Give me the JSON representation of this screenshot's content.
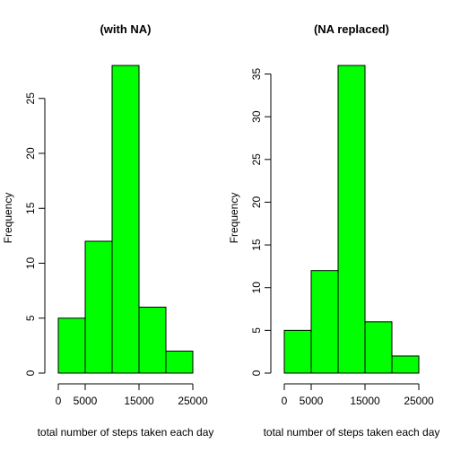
{
  "colors": {
    "bar_fill": "#00ff00",
    "bar_stroke": "#000000"
  },
  "chart_data": [
    {
      "type": "bar",
      "title": "(with NA)",
      "xlabel": "total number of steps taken each day",
      "ylabel": "Frequency",
      "bins": [
        [
          0,
          5000
        ],
        [
          5000,
          10000
        ],
        [
          10000,
          15000
        ],
        [
          15000,
          20000
        ],
        [
          20000,
          25000
        ]
      ],
      "values": [
        5,
        12,
        28,
        6,
        2
      ],
      "xticks": [
        0,
        5000,
        15000,
        25000
      ],
      "xtick_labels": [
        "0",
        "5000",
        "15000",
        "25000"
      ],
      "yticks": [
        0,
        5,
        10,
        15,
        20,
        25
      ],
      "ytick_labels": [
        "0",
        "5",
        "10",
        "15",
        "20",
        "25"
      ],
      "xlim": [
        0,
        25000
      ],
      "ylim": [
        0,
        28
      ],
      "grid": false
    },
    {
      "type": "bar",
      "title": "(NA replaced)",
      "xlabel": "total number of steps taken each day",
      "ylabel": "Frequency",
      "bins": [
        [
          0,
          5000
        ],
        [
          5000,
          10000
        ],
        [
          10000,
          15000
        ],
        [
          15000,
          20000
        ],
        [
          20000,
          25000
        ]
      ],
      "values": [
        5,
        12,
        36,
        6,
        2
      ],
      "xticks": [
        0,
        5000,
        15000,
        25000
      ],
      "xtick_labels": [
        "0",
        "5000",
        "15000",
        "25000"
      ],
      "yticks": [
        0,
        5,
        10,
        15,
        20,
        25,
        30,
        35
      ],
      "ytick_labels": [
        "0",
        "5",
        "10",
        "15",
        "20",
        "25",
        "30",
        "35"
      ],
      "xlim": [
        0,
        25000
      ],
      "ylim": [
        0,
        36
      ],
      "grid": false
    }
  ]
}
